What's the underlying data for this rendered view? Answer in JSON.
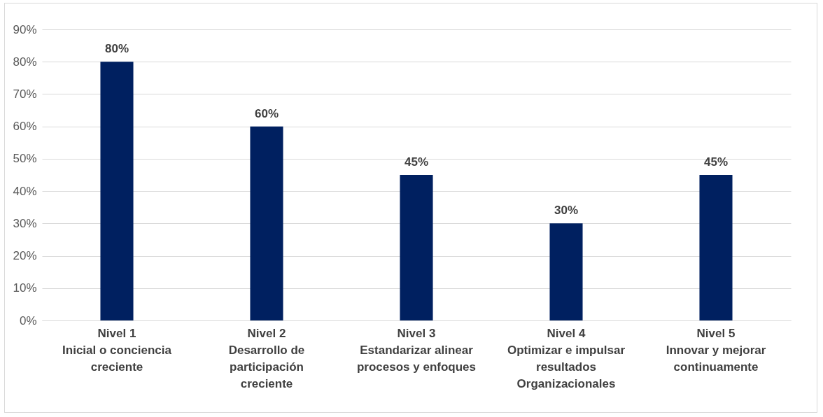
{
  "chart_data": {
    "type": "bar",
    "categories": [
      "Nivel 1\nInicial o conciencia\ncreciente",
      "Nivel 2\nDesarrollo de\nparticipación\ncreciente",
      "Nivel 3\nEstandarizar alinear\nprocesos y enfoques",
      "Nivel 4\nOptimizar e impulsar\nresultados\nOrganizacionales",
      "Nivel 5\nInnovar y mejorar\ncontinuamente"
    ],
    "values": [
      80,
      60,
      45,
      30,
      45
    ],
    "value_labels": [
      "80%",
      "60%",
      "45%",
      "30%",
      "45%"
    ],
    "color": "#002060",
    "ylim": [
      0,
      90
    ],
    "yticks": [
      {
        "value": 0,
        "label": "0%"
      },
      {
        "value": 10,
        "label": "10%"
      },
      {
        "value": 20,
        "label": "20%"
      },
      {
        "value": 30,
        "label": "30%"
      },
      {
        "value": 40,
        "label": "40%"
      },
      {
        "value": 50,
        "label": "50%"
      },
      {
        "value": 60,
        "label": "60%"
      },
      {
        "value": 70,
        "label": "70%"
      },
      {
        "value": 80,
        "label": "80%"
      },
      {
        "value": 90,
        "label": "90%"
      }
    ],
    "grid": "y"
  }
}
